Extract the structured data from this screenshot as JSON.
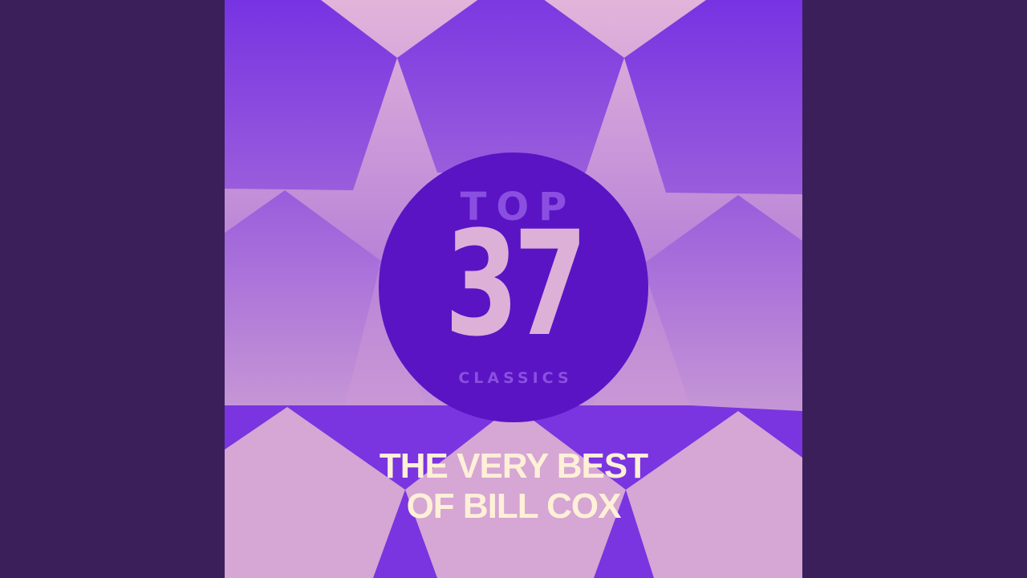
{
  "cover": {
    "badge_top": "TOP",
    "badge_number": "37",
    "badge_bottom": "CLASSICS",
    "title_line1": "THE VERY BEST",
    "title_line2": "OF BILL COX"
  },
  "colors": {
    "side_background": "#3b1f5a",
    "badge": "#5a14c4",
    "title_text": "#fff0d8",
    "number_text": "#ddb0d8"
  }
}
